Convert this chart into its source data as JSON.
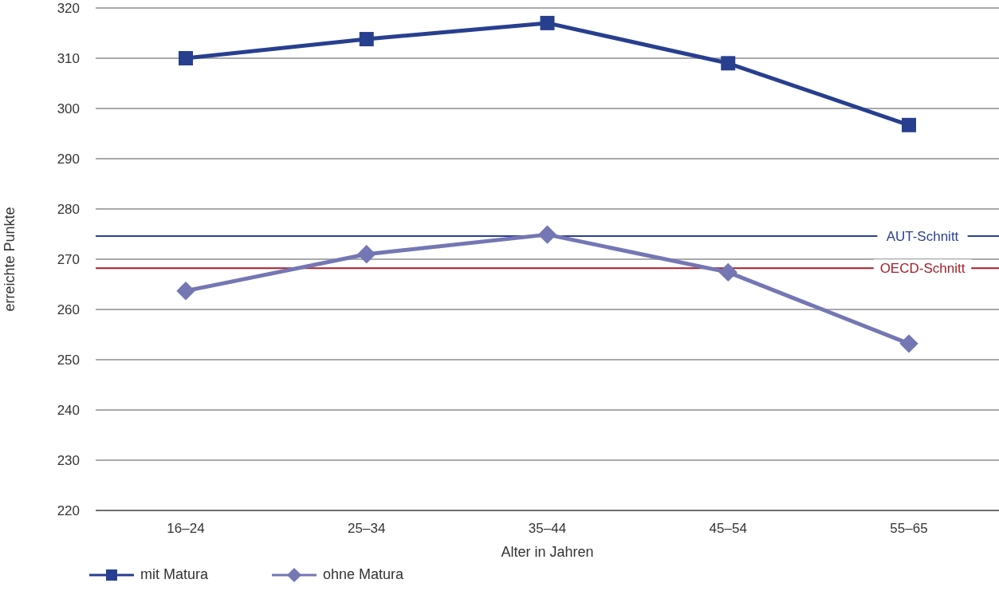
{
  "chart_data": {
    "type": "line",
    "xlabel": "Alter in Jahren",
    "ylabel": "erreichte Punkte",
    "categories": [
      "16–24",
      "25–34",
      "35–44",
      "45–54",
      "55–65"
    ],
    "series": [
      {
        "name": "mit Matura",
        "color": "#283f8f",
        "marker": "square",
        "values": [
          310,
          313.8,
          317,
          309,
          296.7
        ]
      },
      {
        "name": "ohne Matura",
        "color": "#7477b3",
        "marker": "diamond",
        "values": [
          263.7,
          271,
          274.9,
          267.4,
          253.2
        ]
      }
    ],
    "ylim": [
      220,
      320
    ],
    "yticks": [
      220,
      230,
      240,
      250,
      260,
      270,
      280,
      290,
      300,
      310,
      320
    ],
    "grid": "y",
    "legend": "bottom left",
    "ref_lines": [
      {
        "axis": "y",
        "value": 274.6,
        "label": "AUT-Schnitt",
        "color": "#2b3f91"
      },
      {
        "axis": "y",
        "value": 268.2,
        "label": "OECD-Schnitt",
        "color": "#a3202a"
      }
    ]
  }
}
